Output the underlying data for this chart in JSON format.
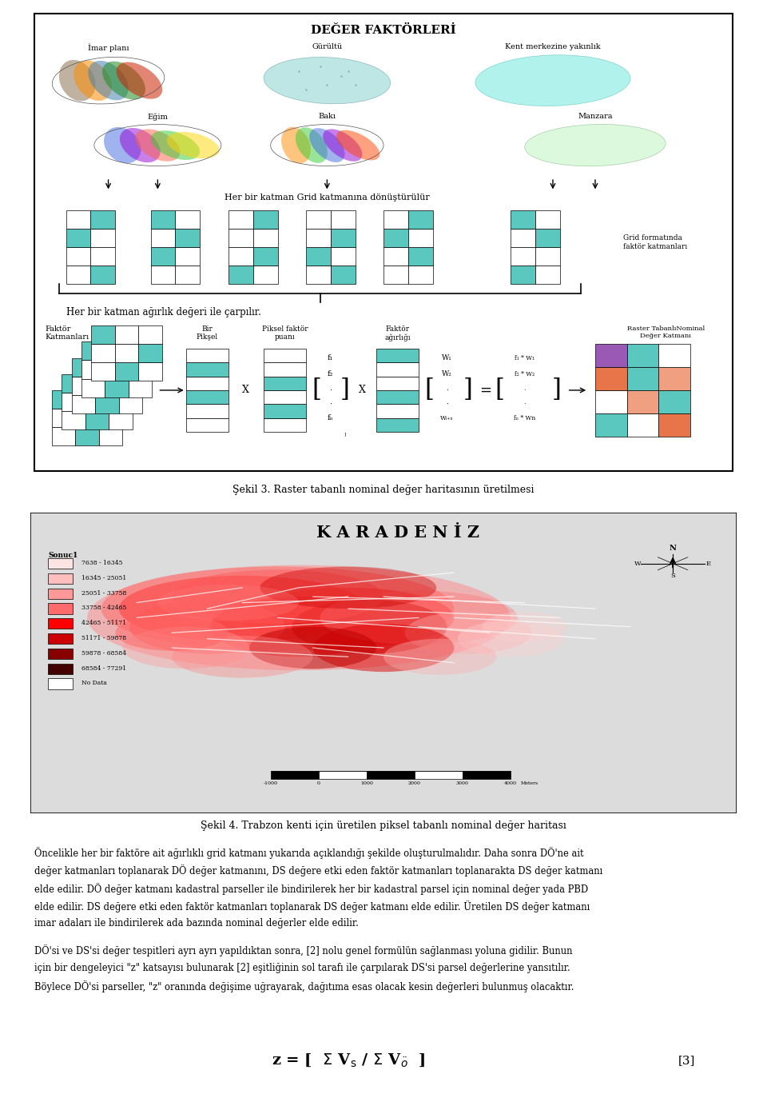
{
  "page_bg": "#ffffff",
  "fig1_title": "DEĞER FAKTÖRLERİ",
  "fig1_caption": "Şekil 3. Raster tabanlı nominal değer haritasının üretilmesi",
  "fig2_caption": "Şekil 4. Trabzon kenti için üretilen piksel tabanlı nominal değer haritası",
  "karadeniz_text": "K A R A D E N İ Z",
  "legend_title": "Sonuc1",
  "legend_items": [
    {
      "label": "7638 - 16345",
      "color": "#FFE4E4"
    },
    {
      "label": "16345 - 25051",
      "color": "#FFBEBE"
    },
    {
      "label": "25051 - 33758",
      "color": "#FF9999"
    },
    {
      "label": "33758 - 42465",
      "color": "#FF6B6B"
    },
    {
      "label": "42465 - 51171",
      "color": "#FF0000"
    },
    {
      "label": "51171 - 59878",
      "color": "#CC0000"
    },
    {
      "label": "59878 - 68584",
      "color": "#880000"
    },
    {
      "label": "68584 - 77291",
      "color": "#440000"
    },
    {
      "label": "No Data",
      "color": "#FFFFFF"
    }
  ],
  "grid_color_teal": "#5BC8C0",
  "grid_color_purple": "#9B59B6",
  "grid_color_orange": "#E8744A",
  "grid_color_salmon": "#F0A080",
  "upper_labels": [
    "İmar planı",
    "Gürültü",
    "Kent merkezine yakınlık"
  ],
  "lower_labels": [
    "Eğim",
    "Bakı",
    "Manzara"
  ],
  "grid_text": "Grid formatında\nfaktör katmanları",
  "weight_text": "Her bir katman ağırlık değeri ile çarpılır.",
  "bir_piksel": "Bir\nPikşel",
  "piksel_faktor": "Piksel faktör\npuanı",
  "faktor_agirlik": "Faktör\nağırlığı",
  "raster_nominal": "Raster TabanlıNominal\nDeğer Katmanı",
  "faktor_katmanlari": "Faktör\nKatmanları",
  "grid_convert_text": "Her bir katman Grid katmanına dönüştürülür",
  "fig1_caption_text": "Şekil 3. Raster tabanlı nominal değer haritasının üretilmesi",
  "fig2_caption_text": "Şekil 4. Trabzon kenti için üretilen piksel tabanlı nominal değer haritası",
  "para1_lines": [
    "Öncelikle her bir faktöre ait ağırlıklı grid katmanı yukarıda açıklandığı şekilde oluşturulmalıdır. Daha sonra DÖ'ne ait",
    "değer katmanları toplanarak DÖ değer katmanını, DS değere etki eden faktör katmanları toplanarakta DS değer katmanı",
    "elde edilir. DÖ değer katmanı kadastral parseller ile bindirilerek her bir kadastral parsel için nominal değer yada PBD",
    "elde edilir. DS değere etki eden faktör katmanları toplanarak DS değer katmanı elde edilir. Üretilen DS değer katmanı",
    "imar adaları ile bindirilerek ada bazında nominal değerler elde edilir."
  ],
  "para2_lines": [
    "DÖ'si ve DS'si değer tespitleri ayrı ayrı yapıldıktan sonra, [2] nolu genel formülün sağlanması yoluna gidilir. Bunun",
    "için bir dengeleyici \"z\" katsayısı bulunarak [2] eşitliğinin sol tarafı ile çarpılarak DS'si parsel değerlerine yansıtılır.",
    "Böylece DÖ'si parseller, \"z\" oranında değişime uğrayarak, dağıtıma esas olacak kesin değerleri bulunmuş olacaktır."
  ],
  "scale_labels": [
    "-1000",
    "0",
    "1000",
    "2000",
    "3000",
    "4000"
  ],
  "formula_ref": "[3]"
}
